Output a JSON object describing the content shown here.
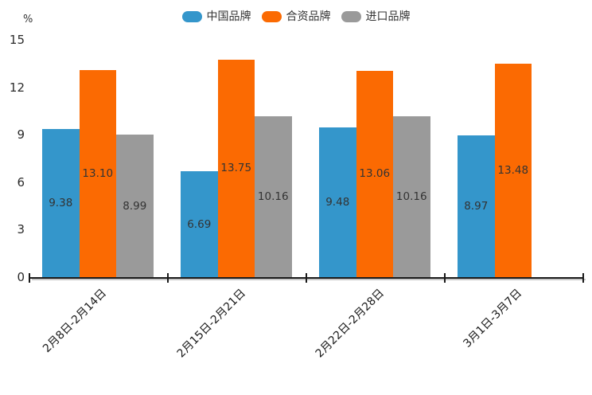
{
  "chart": {
    "unit_label": "%"
  },
  "chart_data": {
    "type": "bar",
    "title": "",
    "categories": [
      "2月8日-2月14日",
      "2月15日-2月21日",
      "2月22日-2月28日",
      "3月1日-3月7日"
    ],
    "series": [
      {
        "name": "中国品牌",
        "color": "#3496cb",
        "values": [
          9.38,
          6.69,
          9.48,
          8.97
        ],
        "labels": [
          "9.38",
          "6.69",
          "9.48",
          "8.97"
        ]
      },
      {
        "name": "合资品牌",
        "color": "#fb6a02",
        "values": [
          13.1,
          13.75,
          13.06,
          13.48
        ],
        "labels": [
          "13.10",
          "13.75",
          "13.06",
          "13.48"
        ]
      },
      {
        "name": "进口品牌",
        "color": "#9a9a9a",
        "values": [
          8.99,
          10.16,
          10.16,
          null
        ],
        "labels": [
          "8.99",
          "10.16",
          "10.16",
          null
        ]
      }
    ],
    "xlabel": "",
    "ylabel": "%",
    "ylim": [
      0,
      15
    ],
    "yticks": [
      0,
      3,
      6,
      9,
      12,
      15
    ],
    "xtick_rotation_deg": 45,
    "legend_position": "top-center",
    "grid": false,
    "value_labels_inside_bars": true,
    "axis_color": "#1a1a1a",
    "text_color": "#333333",
    "background_color": "#ffffff"
  }
}
